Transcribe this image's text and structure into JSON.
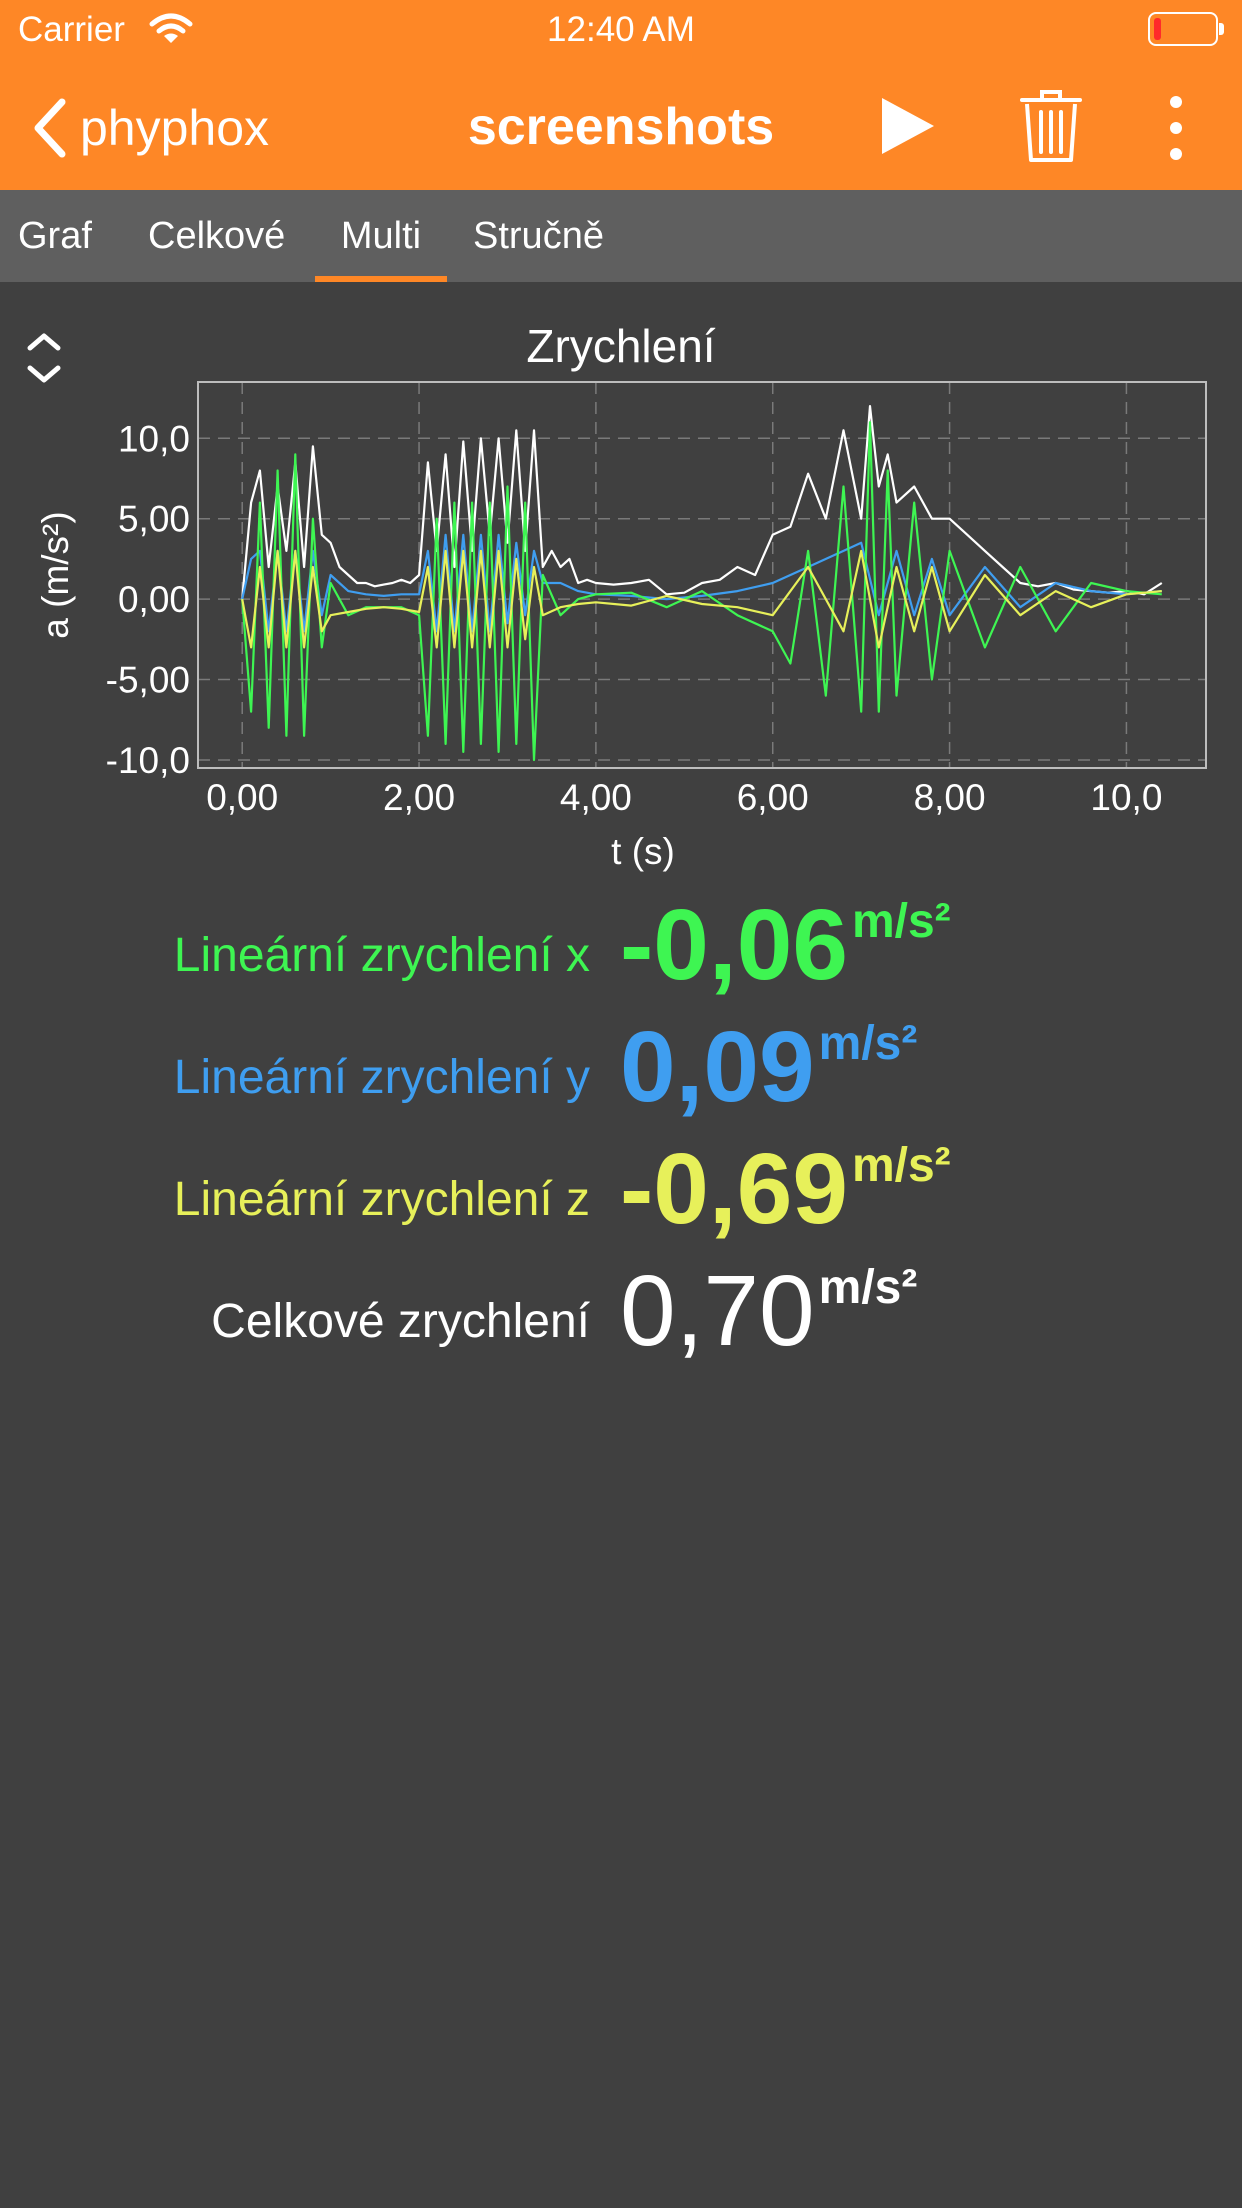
{
  "status_bar": {
    "carrier": "Carrier",
    "time": "12:40 AM"
  },
  "nav": {
    "back_label": "phyphox",
    "title": "screenshots"
  },
  "tabs": [
    {
      "label": "Graf",
      "active": false
    },
    {
      "label": "Celkové",
      "active": false
    },
    {
      "label": "Multi",
      "active": true
    },
    {
      "label": "Stručně",
      "active": false
    }
  ],
  "graph": {
    "title": "Zrychlení"
  },
  "chart_data": {
    "type": "line",
    "title": "Zrychlení",
    "xlabel": "t (s)",
    "ylabel": "a (m/s²)",
    "xlim": [
      -0.5,
      10.9
    ],
    "ylim": [
      -10.5,
      13.5
    ],
    "x_ticks": [
      "0,00",
      "2,00",
      "4,00",
      "6,00",
      "8,00",
      "10,0"
    ],
    "y_ticks": [
      "10,0",
      "5,00",
      "0,00",
      "-5,00",
      "-10,0"
    ],
    "x_tick_values": [
      0,
      2,
      4,
      6,
      8,
      10
    ],
    "y_tick_values": [
      10,
      5,
      0,
      -5,
      -10
    ],
    "grid": true,
    "series": [
      {
        "color": "#ffffff",
        "x": [
          0.0,
          0.1,
          0.2,
          0.3,
          0.4,
          0.5,
          0.6,
          0.7,
          0.8,
          0.9,
          1.0,
          1.1,
          1.2,
          1.3,
          1.4,
          1.5,
          1.6,
          1.7,
          1.8,
          1.9,
          2.0,
          2.1,
          2.2,
          2.3,
          2.4,
          2.5,
          2.6,
          2.7,
          2.8,
          2.9,
          3.0,
          3.1,
          3.2,
          3.3,
          3.4,
          3.5,
          3.6,
          3.7,
          3.8,
          3.9,
          4.0,
          4.2,
          4.4,
          4.6,
          4.8,
          5.0,
          5.2,
          5.4,
          5.6,
          5.8,
          6.0,
          6.2,
          6.4,
          6.6,
          6.8,
          7.0,
          7.1,
          7.2,
          7.3,
          7.4,
          7.6,
          7.8,
          8.0,
          8.2,
          8.4,
          8.6,
          8.8,
          9.0,
          9.2,
          9.4,
          9.6,
          9.8,
          10.0,
          10.2,
          10.4
        ],
        "y": [
          0,
          6,
          8,
          2,
          7,
          3,
          8.5,
          2,
          9.5,
          4,
          3.5,
          2,
          1.5,
          1,
          1,
          0.8,
          0.9,
          1,
          1.2,
          1,
          1.5,
          8.5,
          3,
          9,
          2,
          9.8,
          3,
          10,
          4,
          10,
          3.5,
          10.5,
          3,
          10.5,
          2,
          3,
          2,
          2.5,
          1,
          1.2,
          1,
          0.9,
          1,
          1.2,
          0.3,
          0.4,
          1,
          1.2,
          2,
          1.5,
          4,
          4.5,
          7.8,
          5,
          10.5,
          5,
          12,
          7,
          9,
          6,
          7,
          5,
          5,
          4,
          3,
          2,
          1,
          0.8,
          1,
          0.6,
          0.5,
          0.4,
          0.5,
          0.3,
          1
        ]
      },
      {
        "color": "#3f9ef0",
        "x": [
          0.0,
          0.1,
          0.2,
          0.3,
          0.4,
          0.5,
          0.6,
          0.7,
          0.8,
          0.9,
          1.0,
          1.2,
          1.4,
          1.6,
          1.8,
          2.0,
          2.1,
          2.2,
          2.3,
          2.4,
          2.5,
          2.6,
          2.7,
          2.8,
          2.9,
          3.0,
          3.1,
          3.2,
          3.3,
          3.4,
          3.6,
          3.8,
          4.0,
          4.4,
          4.8,
          5.2,
          5.6,
          6.0,
          6.4,
          6.8,
          7.0,
          7.2,
          7.4,
          7.6,
          7.8,
          8.0,
          8.4,
          8.8,
          9.2,
          9.6,
          10.0,
          10.4
        ],
        "y": [
          0,
          2.5,
          3,
          -2,
          3,
          -2,
          3,
          -2,
          3,
          -1,
          1.5,
          0.5,
          0.3,
          0.2,
          0.3,
          0.3,
          3,
          -2,
          4,
          -2,
          4,
          -2,
          4,
          -2,
          4,
          -1.5,
          3.5,
          -1,
          3,
          1,
          1,
          0.5,
          0.3,
          0.2,
          0,
          0.2,
          0.5,
          1,
          2,
          3,
          3.5,
          -1,
          3,
          -1,
          2.5,
          -1,
          2,
          -0.5,
          1,
          0.5,
          0.3,
          0.5
        ]
      },
      {
        "color": "#3ef552",
        "x": [
          0.0,
          0.1,
          0.2,
          0.3,
          0.4,
          0.5,
          0.6,
          0.7,
          0.8,
          0.9,
          1.0,
          1.2,
          1.4,
          1.6,
          1.8,
          2.0,
          2.1,
          2.2,
          2.3,
          2.4,
          2.5,
          2.6,
          2.7,
          2.8,
          2.9,
          3.0,
          3.1,
          3.2,
          3.3,
          3.4,
          3.6,
          3.8,
          4.0,
          4.4,
          4.8,
          5.2,
          5.6,
          6.0,
          6.2,
          6.4,
          6.6,
          6.8,
          7.0,
          7.1,
          7.2,
          7.3,
          7.4,
          7.6,
          7.8,
          8.0,
          8.4,
          8.8,
          9.2,
          9.6,
          10.0,
          10.4
        ],
        "y": [
          0,
          -7,
          6,
          -8,
          8,
          -8.5,
          9,
          -8.5,
          5,
          -3,
          1,
          -1,
          -0.5,
          -0.5,
          -0.5,
          -1,
          -8.5,
          5,
          -9,
          6,
          -9.5,
          6,
          -9,
          6,
          -9.5,
          7,
          -9,
          6,
          -10,
          1.5,
          -1,
          0,
          0.3,
          0.4,
          -0.5,
          0.5,
          -1,
          -2,
          -4,
          3,
          -6,
          7,
          -7,
          11,
          -7,
          8,
          -6,
          6,
          -5,
          3,
          -3,
          2,
          -2,
          1,
          0.5,
          0.3
        ]
      },
      {
        "color": "#e7f05a",
        "x": [
          0.0,
          0.1,
          0.2,
          0.3,
          0.4,
          0.5,
          0.6,
          0.7,
          0.8,
          0.9,
          1.0,
          1.2,
          1.4,
          1.6,
          1.8,
          2.0,
          2.1,
          2.2,
          2.3,
          2.4,
          2.5,
          2.6,
          2.7,
          2.8,
          2.9,
          3.0,
          3.1,
          3.2,
          3.3,
          3.4,
          3.6,
          3.8,
          4.0,
          4.4,
          4.8,
          5.2,
          5.6,
          6.0,
          6.4,
          6.8,
          7.0,
          7.2,
          7.4,
          7.6,
          7.8,
          8.0,
          8.4,
          8.8,
          9.2,
          9.6,
          10.0,
          10.4
        ],
        "y": [
          0,
          -3,
          2,
          -3,
          3,
          -3,
          3,
          -3,
          2,
          -2,
          -1,
          -0.8,
          -0.6,
          -0.5,
          -0.6,
          -0.8,
          2,
          -3,
          3,
          -3,
          3,
          -3,
          3,
          -3,
          3,
          -3,
          2.5,
          -2.5,
          2,
          -1,
          -0.5,
          -0.3,
          -0.2,
          -0.4,
          0.2,
          -0.3,
          -0.5,
          -1,
          2,
          -2,
          3,
          -3,
          2,
          -2,
          2,
          -2,
          1.5,
          -1,
          0.5,
          -0.5,
          0.3,
          0.5
        ]
      }
    ]
  },
  "values": [
    {
      "label": "Lineární zrychlení x",
      "value": "-0,06",
      "unit": "m/s²",
      "color": "#3ef552"
    },
    {
      "label": "Lineární zrychlení y",
      "value": "0,09",
      "unit": "m/s²",
      "color": "#3f9ef0"
    },
    {
      "label": "Lineární zrychlení z",
      "value": "-0,69",
      "unit": "m/s²",
      "color": "#e7f05a"
    },
    {
      "label": "Celkové zrychlení",
      "value": "0,70",
      "unit": "m/s²",
      "color": "#ffffff"
    }
  ]
}
